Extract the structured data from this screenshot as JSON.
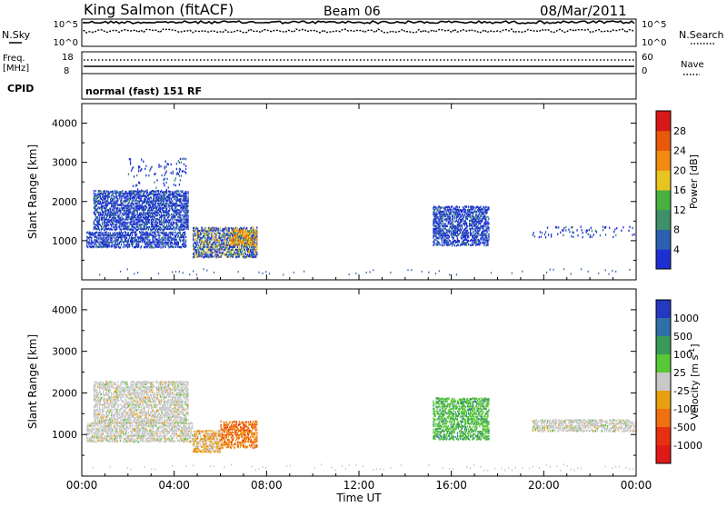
{
  "header": {
    "station": "King Salmon (fitACF)",
    "beam": "Beam 06",
    "date": "08/Mar/2011"
  },
  "status_panels": {
    "nsky_label": "N.Sky",
    "nsearch_label": "N.Search",
    "noise_ticks_left": [
      "10^5",
      "10^0"
    ],
    "noise_ticks_right": [
      "10^5",
      "10^0"
    ],
    "freq_label_1": "Freq.",
    "freq_label_2": "[MHz]",
    "freq_ticks": [
      "18",
      "8"
    ],
    "nave_label": "Nave",
    "nave_ticks": [
      "60",
      "0"
    ],
    "cpid_label": "CPID",
    "cpid_text": "normal (fast) 151 RF"
  },
  "colors": {
    "power_scale": [
      "#1e2fd2",
      "#2c5fb0",
      "#3e8f6a",
      "#48b040",
      "#e8c420",
      "#f08a10",
      "#e85a0a",
      "#d81818"
    ],
    "velocity_scale": [
      "#2438c0",
      "#3070a8",
      "#3a9a5a",
      "#58c838",
      "#c8c8c8",
      "#e8a010",
      "#f07010",
      "#e83010",
      "#e01818"
    ]
  },
  "chart_data": [
    {
      "type": "heatmap",
      "title": "",
      "ylabel": "Slant Range [km]",
      "xlabel": "",
      "xlim": [
        "00:00",
        "24:00"
      ],
      "ylim": [
        0,
        4500
      ],
      "yticks": [
        "1000",
        "2000",
        "3000",
        "4000"
      ],
      "colorbar": {
        "label": "Power [dB]",
        "ticks": [
          "4",
          "8",
          "12",
          "16",
          "20",
          "24",
          "28"
        ]
      },
      "regions": [
        {
          "t_start": 0.2,
          "t_end": 4.5,
          "r_min": 850,
          "r_max": 1250,
          "level": "low"
        },
        {
          "t_start": 0.5,
          "t_end": 4.6,
          "r_min": 1300,
          "r_max": 2300,
          "level": "low"
        },
        {
          "t_start": 2.0,
          "t_end": 4.5,
          "r_min": 1700,
          "r_max": 3100,
          "level": "sparse"
        },
        {
          "t_start": 4.8,
          "t_end": 7.6,
          "r_min": 600,
          "r_max": 1350,
          "level": "mixed"
        },
        {
          "t_start": 6.4,
          "t_end": 7.6,
          "r_min": 900,
          "r_max": 1300,
          "level": "high"
        },
        {
          "t_start": 15.2,
          "t_end": 17.6,
          "r_min": 900,
          "r_max": 1900,
          "level": "low"
        },
        {
          "t_start": 19.5,
          "t_end": 24.0,
          "r_min": 1100,
          "r_max": 1400,
          "level": "sparse"
        }
      ]
    },
    {
      "type": "heatmap",
      "title": "",
      "ylabel": "Slant Range [km]",
      "xlabel": "Time UT",
      "xlim": [
        "00:00",
        "24:00"
      ],
      "ylim": [
        0,
        4500
      ],
      "yticks": [
        "1000",
        "2000",
        "3000",
        "4000"
      ],
      "xticks": [
        "00:00",
        "04:00",
        "08:00",
        "12:00",
        "16:00",
        "20:00",
        "00:00"
      ],
      "colorbar": {
        "label": "Velocity [m s",
        "label_sup": "-1",
        "label_end": "]",
        "ticks": [
          "1000",
          "500",
          "100",
          "25",
          "-25",
          "-100",
          "-500",
          "-1000"
        ]
      },
      "regions": [
        {
          "t_start": 0.2,
          "t_end": 4.8,
          "r_min": 850,
          "r_max": 1300,
          "level": "ground"
        },
        {
          "t_start": 0.5,
          "t_end": 4.6,
          "r_min": 1300,
          "r_max": 2300,
          "level": "ground"
        },
        {
          "t_start": 4.8,
          "t_end": 6.0,
          "r_min": 600,
          "r_max": 1100,
          "level": "neg"
        },
        {
          "t_start": 6.0,
          "t_end": 7.6,
          "r_min": 700,
          "r_max": 1350,
          "level": "strongneg"
        },
        {
          "t_start": 15.2,
          "t_end": 17.6,
          "r_min": 900,
          "r_max": 1900,
          "level": "pos"
        },
        {
          "t_start": 19.5,
          "t_end": 24.0,
          "r_min": 1100,
          "r_max": 1400,
          "level": "ground"
        }
      ]
    }
  ]
}
